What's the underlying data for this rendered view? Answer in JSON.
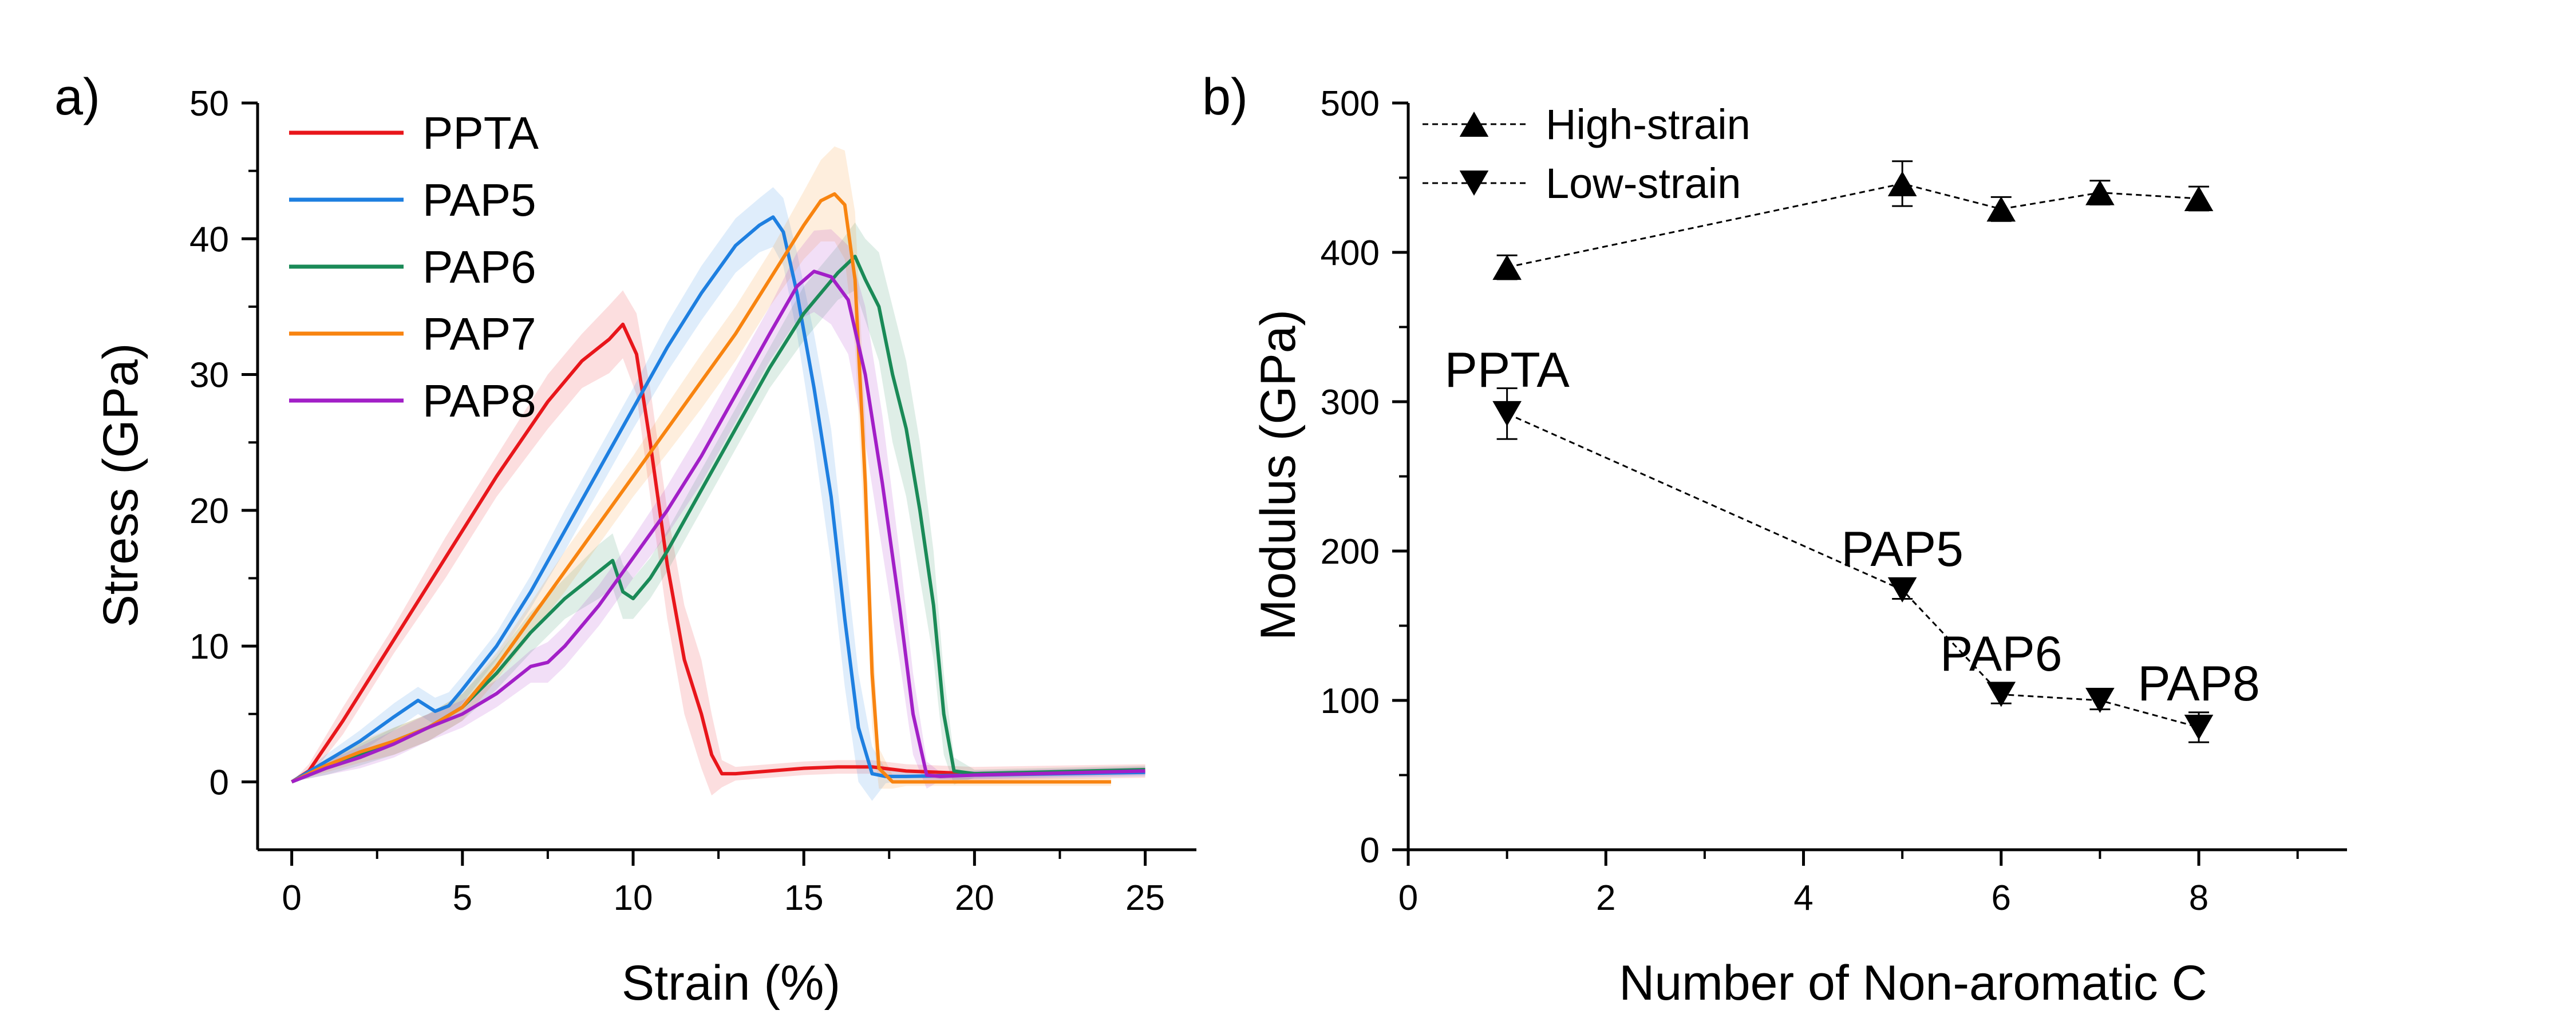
{
  "chart_data": [
    {
      "panel_label": "a)",
      "type": "line",
      "xlabel": "Strain (%)",
      "ylabel": "Stress (GPa)",
      "xlim": [
        -1,
        26.5
      ],
      "ylim": [
        -5,
        50
      ],
      "xticks": [
        0,
        5,
        10,
        15,
        20,
        25
      ],
      "yticks": [
        0,
        10,
        20,
        30,
        40,
        50
      ],
      "legend": "top-left",
      "grid": false,
      "series": [
        {
          "name": "PPTA",
          "color": "#e8161b",
          "x": [
            0,
            0.5,
            1.5,
            3,
            4.5,
            6,
            7.5,
            8.5,
            9.3,
            9.7,
            10.1,
            10.5,
            11,
            11.5,
            12,
            12.3,
            12.6,
            13,
            14,
            15,
            16,
            17,
            18,
            20,
            25
          ],
          "y": [
            0,
            0.8,
            4.5,
            10.5,
            16.5,
            22.5,
            28,
            31,
            32.6,
            33.7,
            31.5,
            25,
            16,
            9,
            5,
            2,
            0.6,
            0.6,
            0.8,
            1,
            1.1,
            1.1,
            0.8,
            0.6,
            0.8
          ],
          "band": [
            0,
            0.5,
            1,
            1,
            1.5,
            1.5,
            2,
            2,
            2.5,
            2.5,
            3,
            4,
            4,
            4,
            4,
            3,
            1,
            0.5,
            0.5,
            0.5,
            0.5,
            0.5,
            0.5,
            0.5,
            0.5
          ]
        },
        {
          "name": "PAP5",
          "color": "#1e7fe0",
          "x": [
            0,
            1,
            2,
            3,
            3.7,
            4.2,
            4.6,
            5,
            6,
            7,
            8,
            9,
            10,
            11,
            12,
            13,
            13.7,
            14.1,
            14.4,
            14.8,
            15.3,
            15.8,
            16.2,
            16.6,
            17,
            17.4,
            18,
            20,
            25
          ],
          "y": [
            0,
            1.5,
            3,
            4.8,
            6,
            5.2,
            5.6,
            6.8,
            10,
            14,
            18.5,
            23,
            27.5,
            32,
            36,
            39.5,
            41,
            41.6,
            40.5,
            36,
            29,
            21,
            12,
            4,
            0.6,
            0.4,
            0.4,
            0.5,
            0.7
          ],
          "band": [
            0,
            0.5,
            0.8,
            1,
            1,
            1,
            1,
            1,
            1,
            1.2,
            1.5,
            1.5,
            1.5,
            1.8,
            2,
            2,
            2,
            2.2,
            2.5,
            3,
            4,
            5,
            5,
            4,
            2,
            0.5,
            0.3,
            0.3,
            0.3
          ]
        },
        {
          "name": "PAP6",
          "color": "#1a8a57",
          "x": [
            0,
            1,
            2,
            3,
            4,
            5,
            6,
            7,
            8,
            9,
            9.4,
            9.7,
            10,
            10.5,
            11,
            12,
            13,
            14,
            15,
            16,
            16.5,
            16.8,
            17.2,
            17.6,
            18,
            18.4,
            18.8,
            19.1,
            19.4,
            20,
            25
          ],
          "y": [
            0,
            1,
            2,
            3,
            4,
            5.5,
            8,
            11,
            13.5,
            15.5,
            16.3,
            14,
            13.5,
            15,
            17,
            21.5,
            26,
            30.5,
            34.5,
            37.5,
            38.7,
            37,
            35,
            30,
            26,
            20,
            13,
            5,
            0.8,
            0.6,
            0.9
          ],
          "band": [
            0,
            0.5,
            0.8,
            1,
            1,
            1,
            1.2,
            1.5,
            1.5,
            2,
            2,
            2,
            1.5,
            1.5,
            1.5,
            1.5,
            1.5,
            1.5,
            2,
            2,
            2.5,
            3,
            4,
            5,
            5,
            5,
            4,
            3,
            1,
            0.3,
            0.3
          ]
        },
        {
          "name": "PAP7",
          "color": "#f88410",
          "x": [
            0,
            1,
            2,
            3,
            4,
            5,
            6,
            7,
            8,
            9,
            10,
            11,
            12,
            13,
            14,
            15,
            15.5,
            15.9,
            16.2,
            16.5,
            16.8,
            17,
            17.2,
            17.6,
            18,
            20,
            22,
            24
          ],
          "y": [
            0,
            1.2,
            2.2,
            3,
            4,
            5.5,
            8.5,
            12,
            15.5,
            19,
            22.5,
            26,
            29.5,
            33,
            37,
            41,
            42.8,
            43.3,
            42.5,
            37,
            22,
            8,
            1,
            0,
            0,
            0,
            0,
            0
          ],
          "band": [
            0,
            0.5,
            0.8,
            1,
            1,
            1,
            1,
            1.2,
            1.5,
            1.5,
            1.5,
            1.8,
            2,
            2,
            2,
            2.5,
            3,
            3.5,
            4,
            5,
            5,
            4,
            1.5,
            0.5,
            0.3,
            0.3,
            0.3,
            0.3
          ]
        },
        {
          "name": "PAP8",
          "color": "#a21fc7",
          "x": [
            0,
            1,
            2,
            3,
            4,
            5,
            6,
            7,
            7.5,
            8,
            9,
            10,
            11,
            12,
            13,
            14,
            14.8,
            15.3,
            15.8,
            16.3,
            16.8,
            17.3,
            17.8,
            18.2,
            18.6,
            19,
            20,
            25
          ],
          "y": [
            0,
            1,
            1.8,
            2.8,
            4,
            5,
            6.5,
            8.5,
            8.8,
            10,
            13,
            16.5,
            20,
            24,
            28.5,
            33,
            36.5,
            37.6,
            37.2,
            35.5,
            30,
            22,
            13,
            5,
            0.5,
            0.4,
            0.5,
            0.8
          ],
          "band": [
            0,
            0.5,
            0.8,
            1,
            1,
            1,
            1,
            1.2,
            1.5,
            1.5,
            1.5,
            1.5,
            1.8,
            2,
            2,
            2,
            2.5,
            3,
            3.5,
            4,
            5,
            5,
            4,
            3,
            1,
            0.3,
            0.3,
            0.3
          ]
        }
      ]
    },
    {
      "panel_label": "b)",
      "type": "scatter",
      "xlabel": "Number of Non-aromatic C",
      "ylabel": "Modulus (GPa)",
      "xlim": [
        0,
        9.5
      ],
      "ylim": [
        0,
        500
      ],
      "xticks": [
        0,
        2,
        4,
        6,
        8
      ],
      "yticks": [
        0,
        100,
        200,
        300,
        400,
        500
      ],
      "legend": "top-left",
      "grid": false,
      "series": [
        {
          "name": "High-strain",
          "marker": "triangle-up",
          "line": "dashed",
          "x": [
            1,
            5,
            6,
            7,
            8
          ],
          "y": [
            390,
            446,
            429,
            440,
            436
          ],
          "error": [
            8,
            15,
            8,
            8,
            8
          ]
        },
        {
          "name": "Low-strain",
          "marker": "triangle-down",
          "line": "dashed",
          "x": [
            1,
            5,
            6,
            7,
            8
          ],
          "y": [
            292,
            174,
            104,
            100,
            82
          ],
          "error": [
            17,
            6,
            6,
            6,
            10
          ]
        }
      ],
      "annotations": [
        {
          "text": "PPTA",
          "x": 1,
          "y": 310
        },
        {
          "text": "PAP5",
          "x": 5,
          "y": 190
        },
        {
          "text": "PAP6",
          "x": 6,
          "y": 120
        },
        {
          "text": "PAP8",
          "x": 8,
          "y": 100
        }
      ]
    }
  ]
}
